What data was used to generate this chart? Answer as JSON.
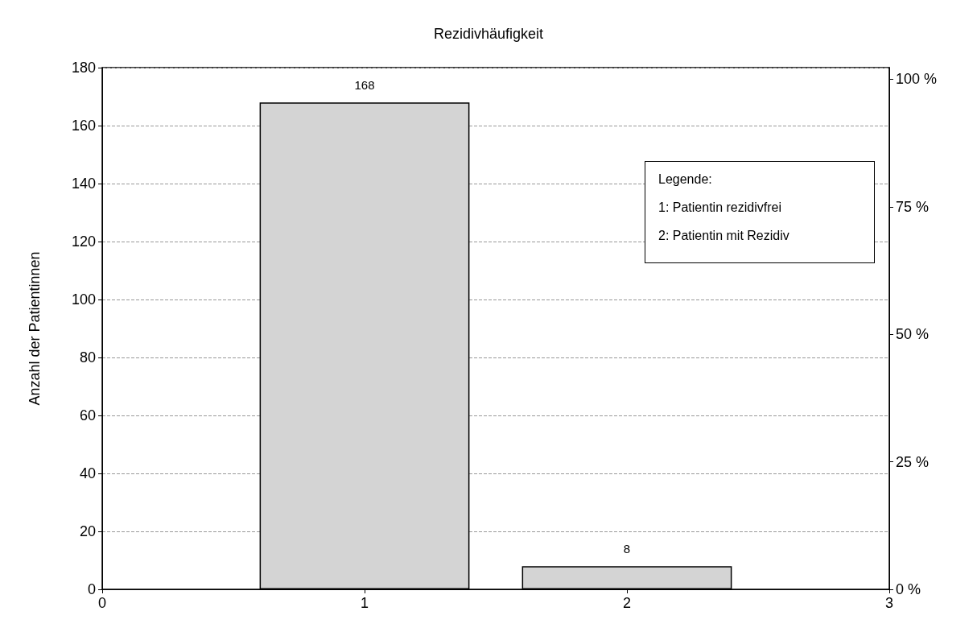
{
  "chart_data": {
    "type": "bar",
    "title": "Rezidivhäufigkeit",
    "ylabel": "Anzahl der Patientinnen",
    "x": [
      1,
      2
    ],
    "values": [
      168,
      8
    ],
    "color": "#d4d4d4",
    "xlim": [
      0,
      3
    ],
    "xticks": [
      0,
      1,
      2,
      3
    ],
    "ylim": [
      0,
      180
    ],
    "yticks": [
      0,
      20,
      40,
      60,
      80,
      100,
      120,
      140,
      160,
      180
    ],
    "y2lim": [
      0,
      102.27
    ],
    "y2ticks": [
      {
        "value": 0,
        "label": "0 %"
      },
      {
        "value": 25,
        "label": "25 %"
      },
      {
        "value": 50,
        "label": "50 %"
      },
      {
        "value": 75,
        "label": "75 %"
      },
      {
        "value": 100,
        "label": "100 %"
      }
    ],
    "annotations": [
      "Legende:",
      "1: Patientin rezidivfrei",
      "2: Patientin mit Rezidiv"
    ],
    "data_labels": true,
    "grid": "y"
  }
}
